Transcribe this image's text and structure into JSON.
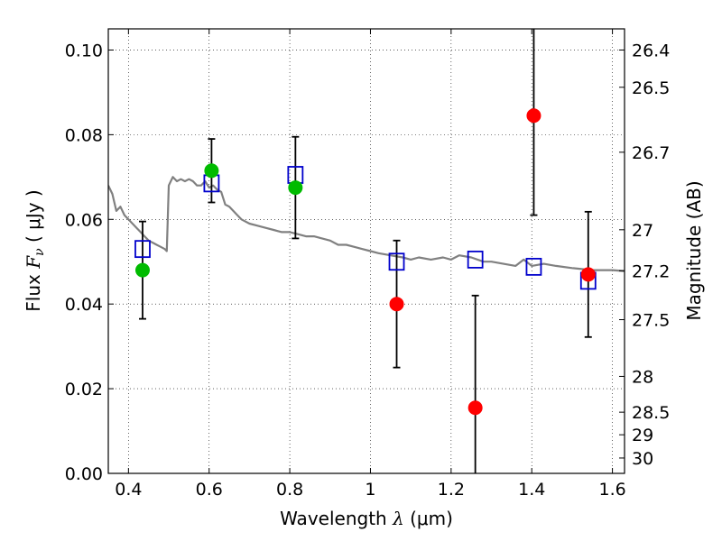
{
  "chart_data": {
    "type": "scatter",
    "xlabel": {
      "pre": "Wavelength  ",
      "var": "λ",
      "post": " (μm)"
    },
    "ylabel": {
      "pre": "Flux  ",
      "var": "F",
      "sub": "ν",
      "post": "  ( μJy )"
    },
    "y2label": "Magnitude (AB)",
    "xlim": [
      0.35,
      1.63
    ],
    "ylim": [
      0.0,
      0.105
    ],
    "xticks": [
      0.4,
      0.6,
      0.8,
      1.0,
      1.2,
      1.4,
      1.6
    ],
    "xtick_labels": [
      "0.4",
      "0.6",
      "0.8",
      "1",
      "1.2",
      "1.4",
      "1.6"
    ],
    "yticks": [
      0.0,
      0.02,
      0.04,
      0.06,
      0.08,
      0.1
    ],
    "ytick_labels": [
      "0.00",
      "0.02",
      "0.04",
      "0.06",
      "0.08",
      "0.10"
    ],
    "mag_ticks": [
      26.4,
      26.5,
      26.7,
      27,
      27.2,
      27.5,
      28,
      28.5,
      29,
      30
    ],
    "mag_tick_labels": [
      "26.4",
      "26.5",
      "26.7",
      "27",
      "27.2",
      "27.5",
      "28",
      "28.5",
      "29",
      "30"
    ],
    "grid": true,
    "colors": {
      "model": "#808080",
      "model_photometry": "#0000cc",
      "observed_ground": "#00bb00",
      "observed_nir": "#ff0000",
      "errorbar": "#000000"
    },
    "series": [
      {
        "marker": "open-square",
        "color": "#0000cc",
        "x": [
          0.435,
          0.606,
          0.814,
          1.065,
          1.26,
          1.405,
          1.54
        ],
        "y": [
          0.053,
          0.0685,
          0.0705,
          0.05,
          0.0505,
          0.0488,
          0.0455
        ]
      },
      {
        "marker": "filled-circle",
        "color": "#00bb00",
        "x": [
          0.435,
          0.606,
          0.814
        ],
        "y": [
          0.048,
          0.0715,
          0.0675
        ],
        "yerr": [
          0.0115,
          0.0075,
          0.012
        ]
      },
      {
        "marker": "filled-circle",
        "color": "#ff0000",
        "x": [
          1.065,
          1.26,
          1.405,
          1.54
        ],
        "y": [
          0.04,
          0.0155,
          0.0845,
          0.047
        ],
        "yerr": [
          0.015,
          0.0265,
          0.0235,
          0.0148
        ]
      },
      {
        "type": "line",
        "color": "#808080",
        "x": [
          0.35,
          0.36,
          0.37,
          0.38,
          0.39,
          0.4,
          0.41,
          0.42,
          0.43,
          0.44,
          0.45,
          0.46,
          0.47,
          0.48,
          0.49,
          0.495,
          0.5,
          0.51,
          0.52,
          0.53,
          0.54,
          0.55,
          0.56,
          0.57,
          0.58,
          0.59,
          0.6,
          0.61,
          0.62,
          0.63,
          0.64,
          0.65,
          0.66,
          0.67,
          0.68,
          0.7,
          0.72,
          0.74,
          0.76,
          0.78,
          0.8,
          0.82,
          0.84,
          0.86,
          0.88,
          0.9,
          0.92,
          0.94,
          0.96,
          0.98,
          1.0,
          1.02,
          1.05,
          1.08,
          1.1,
          1.12,
          1.15,
          1.18,
          1.2,
          1.22,
          1.25,
          1.28,
          1.3,
          1.33,
          1.36,
          1.38,
          1.4,
          1.43,
          1.46,
          1.5,
          1.55,
          1.6,
          1.63
        ],
        "y": [
          0.068,
          0.066,
          0.062,
          0.063,
          0.061,
          0.06,
          0.059,
          0.058,
          0.057,
          0.056,
          0.055,
          0.0545,
          0.054,
          0.0535,
          0.053,
          0.0525,
          0.068,
          0.07,
          0.069,
          0.0695,
          0.069,
          0.0695,
          0.069,
          0.068,
          0.068,
          0.069,
          0.0675,
          0.068,
          0.067,
          0.0665,
          0.0635,
          0.063,
          0.062,
          0.061,
          0.06,
          0.059,
          0.0585,
          0.058,
          0.0575,
          0.057,
          0.057,
          0.0565,
          0.056,
          0.056,
          0.0555,
          0.055,
          0.054,
          0.054,
          0.0535,
          0.053,
          0.0525,
          0.052,
          0.0515,
          0.051,
          0.0505,
          0.051,
          0.0505,
          0.051,
          0.0505,
          0.0515,
          0.051,
          0.05,
          0.05,
          0.0495,
          0.049,
          0.0505,
          0.049,
          0.0495,
          0.049,
          0.0485,
          0.048,
          0.048,
          0.0478
        ]
      }
    ]
  }
}
